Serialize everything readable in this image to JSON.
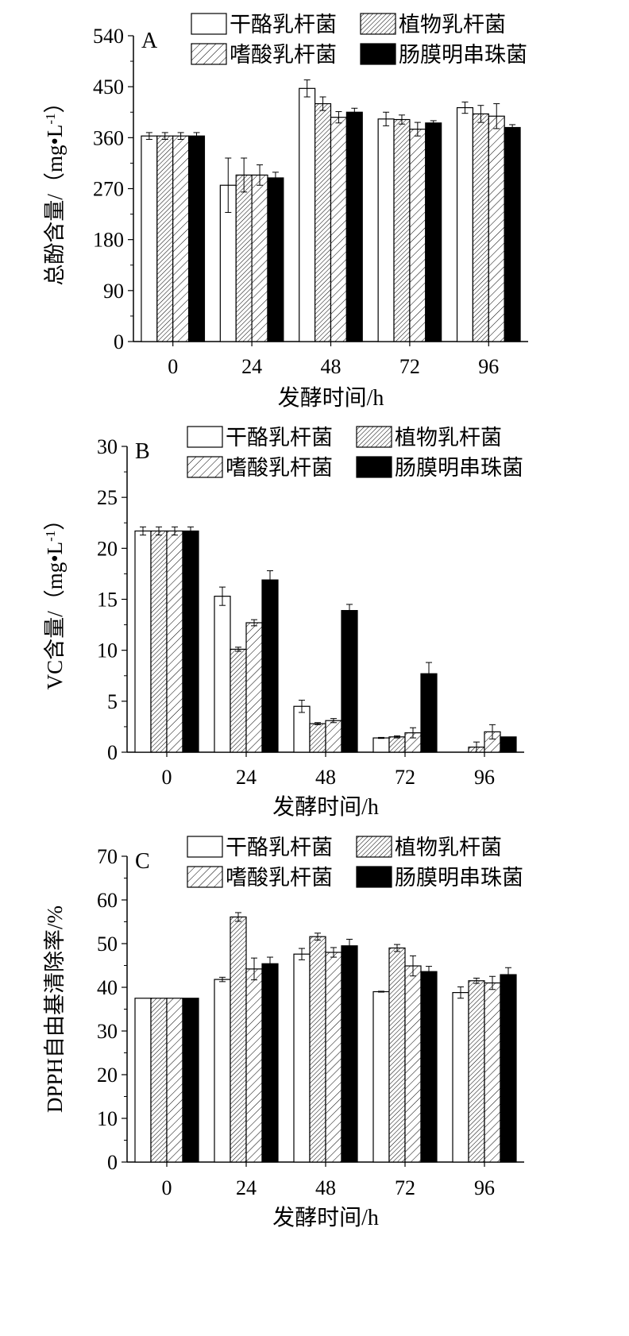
{
  "chart_data": [
    {
      "type": "bar",
      "panel": "A",
      "xlabel": "发酵时间/h",
      "ylabel": "总酚含量/（mg•L-1）",
      "ylabel_main": "总酚含量/（mg•L",
      "ylabel_sup": "-1",
      "ylabel_tail": "）",
      "ylim": [
        0,
        540
      ],
      "yticks": [
        "0",
        "90",
        "180",
        "270",
        "360",
        "450",
        "540"
      ],
      "categories": [
        "0",
        "24",
        "48",
        "72",
        "96"
      ],
      "legend": [
        "干酪乳杆菌",
        "植物乳杆菌",
        "嗜酸乳杆菌",
        "肠膜明串珠菌"
      ],
      "series": [
        {
          "name": "干酪乳杆菌",
          "values": [
            363,
            276,
            447,
            393,
            413
          ],
          "errors": [
            6,
            48,
            15,
            12,
            10
          ]
        },
        {
          "name": "植物乳杆菌",
          "values": [
            363,
            294,
            420,
            392,
            402
          ],
          "errors": [
            6,
            30,
            12,
            8,
            15
          ]
        },
        {
          "name": "嗜酸乳杆菌",
          "values": [
            363,
            294,
            396,
            375,
            398
          ],
          "errors": [
            6,
            18,
            10,
            12,
            22
          ]
        },
        {
          "name": "肠膜明串珠菌",
          "values": [
            363,
            289,
            405,
            386,
            378
          ],
          "errors": [
            6,
            10,
            7,
            4,
            5
          ]
        }
      ]
    },
    {
      "type": "bar",
      "panel": "B",
      "xlabel": "发酵时间/h",
      "ylabel": "VC含量/（mg•L-1）",
      "ylabel_main": "VC含量/（mg•L",
      "ylabel_sup": "-1",
      "ylabel_tail": "）",
      "ylim": [
        0,
        30
      ],
      "yticks": [
        "0",
        "5",
        "10",
        "15",
        "20",
        "25",
        "30"
      ],
      "categories": [
        "0",
        "24",
        "48",
        "72",
        "96"
      ],
      "legend": [
        "干酪乳杆菌",
        "植物乳杆菌",
        "嗜酸乳杆菌",
        "肠膜明串珠菌"
      ],
      "series": [
        {
          "name": "干酪乳杆菌",
          "values": [
            21.7,
            15.3,
            4.5,
            1.4,
            0
          ],
          "errors": [
            0.4,
            0.9,
            0.6,
            0.05,
            0
          ]
        },
        {
          "name": "植物乳杆菌",
          "values": [
            21.7,
            10.1,
            2.8,
            1.5,
            0.5
          ],
          "errors": [
            0.4,
            0.2,
            0.1,
            0.1,
            0.5
          ]
        },
        {
          "name": "嗜酸乳杆菌",
          "values": [
            21.7,
            12.7,
            3.1,
            1.9,
            2.0
          ],
          "errors": [
            0.4,
            0.3,
            0.2,
            0.5,
            0.7
          ]
        },
        {
          "name": "肠膜明串珠菌",
          "values": [
            21.7,
            16.9,
            13.9,
            7.7,
            1.5
          ],
          "errors": [
            0.4,
            0.9,
            0.6,
            1.1,
            0
          ]
        }
      ]
    },
    {
      "type": "bar",
      "panel": "C",
      "xlabel": "发酵时间/h",
      "ylabel": "DPPH自由基清除率/%",
      "ylabel_main": "DPPH自由基清除率/%",
      "ylabel_sup": "",
      "ylabel_tail": "",
      "ylim": [
        0,
        70
      ],
      "yticks": [
        "0",
        "10",
        "20",
        "30",
        "40",
        "50",
        "60",
        "70"
      ],
      "categories": [
        "0",
        "24",
        "48",
        "72",
        "96"
      ],
      "legend": [
        "干酪乳杆菌",
        "植物乳杆菌",
        "嗜酸乳杆菌",
        "肠膜明串珠菌"
      ],
      "series": [
        {
          "name": "干酪乳杆菌",
          "values": [
            37.5,
            41.8,
            47.6,
            39.0,
            38.8
          ],
          "errors": [
            0,
            0.5,
            1.3,
            0.1,
            1.3
          ]
        },
        {
          "name": "植物乳杆菌",
          "values": [
            37.5,
            56.1,
            51.6,
            49.0,
            41.5
          ],
          "errors": [
            0,
            1.0,
            0.8,
            0.8,
            0.6
          ]
        },
        {
          "name": "嗜酸乳杆菌",
          "values": [
            37.5,
            44.2,
            48.0,
            44.9,
            41.0
          ],
          "errors": [
            0,
            2.5,
            1.1,
            2.3,
            1.5
          ]
        },
        {
          "name": "肠膜明串珠菌",
          "values": [
            37.5,
            45.4,
            49.5,
            43.6,
            42.9
          ],
          "errors": [
            0,
            1.5,
            1.5,
            1.2,
            1.6
          ]
        }
      ]
    }
  ],
  "styles": {
    "fills": [
      "white",
      "hatch-dense",
      "hatch-wide",
      "#000000"
    ],
    "stroke": "#000000",
    "background": "#ffffff"
  }
}
